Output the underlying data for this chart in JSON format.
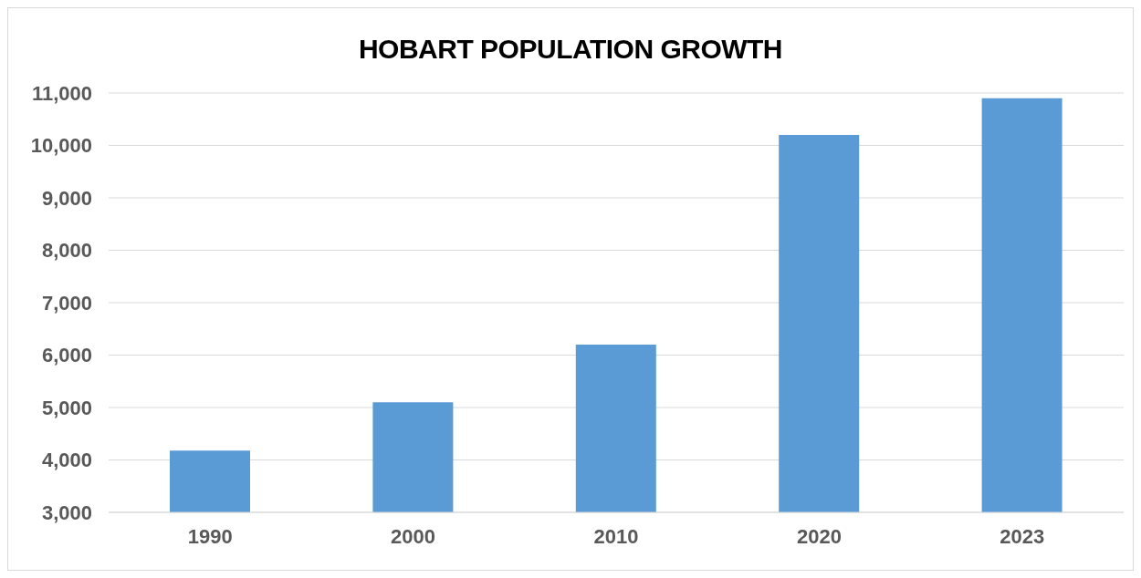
{
  "chart_data": {
    "type": "bar",
    "title": "HOBART POPULATION GROWTH",
    "categories": [
      "1990",
      "2000",
      "2010",
      "2020",
      "2023"
    ],
    "values": [
      4180,
      5100,
      6200,
      10200,
      10900
    ],
    "color": "#5b9bd5",
    "ylim": [
      3000,
      11000
    ],
    "yticks": [
      {
        "value": 3000,
        "label": "3,000"
      },
      {
        "value": 4000,
        "label": "4,000"
      },
      {
        "value": 5000,
        "label": "5,000"
      },
      {
        "value": 6000,
        "label": "6,000"
      },
      {
        "value": 7000,
        "label": "7,000"
      },
      {
        "value": 8000,
        "label": "8,000"
      },
      {
        "value": 9000,
        "label": "9,000"
      },
      {
        "value": 10000,
        "label": "10,000"
      },
      {
        "value": 11000,
        "label": "11,000"
      }
    ],
    "grid": "y"
  }
}
